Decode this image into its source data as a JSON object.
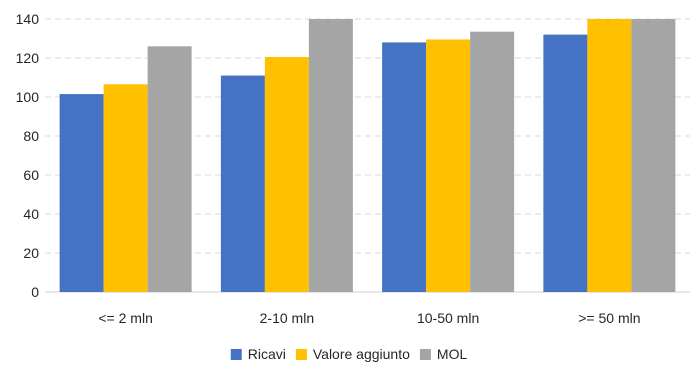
{
  "chart_data": {
    "type": "bar",
    "title": "",
    "xlabel": "",
    "ylabel": "",
    "ylim": [
      0,
      140
    ],
    "yticks": [
      0,
      20,
      40,
      60,
      80,
      100,
      120,
      140
    ],
    "grid": true,
    "legend_position": "bottom",
    "categories": [
      "<= 2 mln",
      "2-10 mln",
      "10-50 mln",
      ">= 50 mln"
    ],
    "series": [
      {
        "name": "Ricavi",
        "color": "#4472c4",
        "values": [
          101.5,
          111,
          128,
          132
        ]
      },
      {
        "name": "Valore aggiunto",
        "color": "#ffc000",
        "values": [
          106.5,
          120.5,
          129.5,
          140
        ]
      },
      {
        "name": "MOL",
        "color": "#a5a5a5",
        "values": [
          126,
          140,
          133.5,
          140
        ]
      }
    ]
  }
}
